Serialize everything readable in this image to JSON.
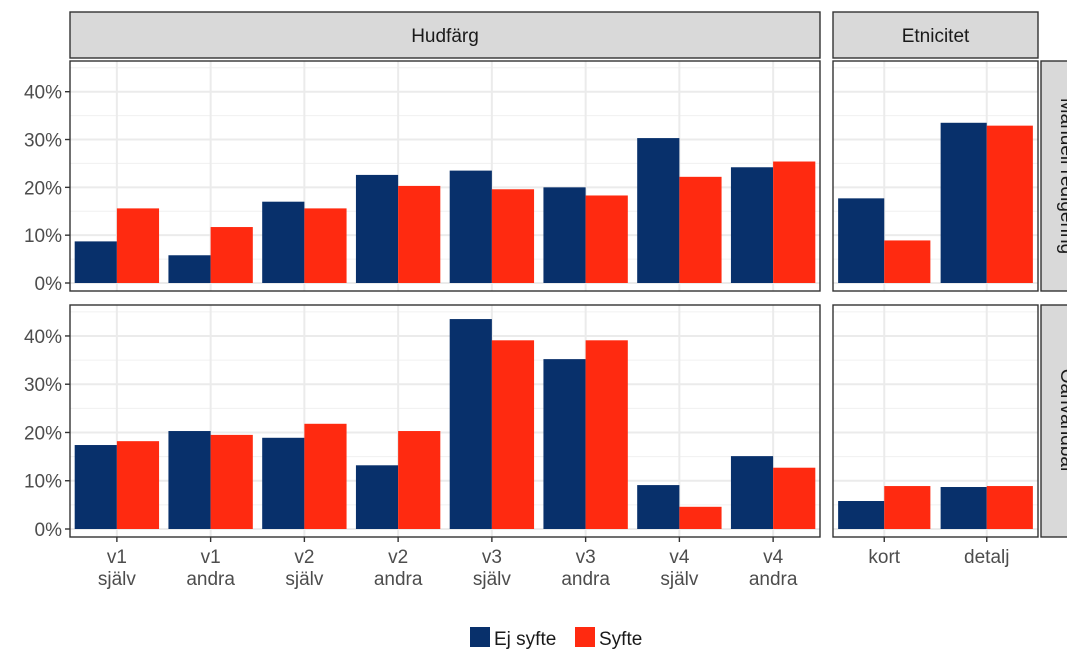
{
  "chart_data": {
    "type": "bar",
    "facet_columns": [
      "Hudfärg",
      "Etnicitet"
    ],
    "facet_rows": [
      "Manuell redigering",
      "Oanvändbar"
    ],
    "categories": {
      "Hudfärg": [
        [
          "v1",
          "själv"
        ],
        [
          "v1",
          "andra"
        ],
        [
          "v2",
          "själv"
        ],
        [
          "v2",
          "andra"
        ],
        [
          "v3",
          "själv"
        ],
        [
          "v3",
          "andra"
        ],
        [
          "v4",
          "själv"
        ],
        [
          "v4",
          "andra"
        ]
      ],
      "Etnicitet": [
        [
          "kort"
        ],
        [
          "detalj"
        ]
      ]
    },
    "series": [
      {
        "name": "Ej syfte",
        "color": "#08306b"
      },
      {
        "name": "Syfte",
        "color": "#ff2a10"
      }
    ],
    "panels": [
      {
        "row": "Manuell redigering",
        "col": "Hudfärg",
        "values": {
          "Ej syfte": [
            8.7,
            5.8,
            17.0,
            22.6,
            23.5,
            20.0,
            30.3,
            24.2
          ],
          "Syfte": [
            15.6,
            11.7,
            15.6,
            20.3,
            19.6,
            18.3,
            22.2,
            25.4
          ]
        }
      },
      {
        "row": "Manuell redigering",
        "col": "Etnicitet",
        "values": {
          "Ej syfte": [
            17.7,
            33.5
          ],
          "Syfte": [
            8.9,
            32.9
          ]
        }
      },
      {
        "row": "Oanvändbar",
        "col": "Hudfärg",
        "values": {
          "Ej syfte": [
            17.4,
            20.3,
            18.9,
            13.2,
            43.5,
            35.2,
            9.1,
            15.1
          ],
          "Syfte": [
            18.2,
            19.5,
            21.8,
            20.3,
            39.1,
            39.1,
            4.6,
            12.7
          ]
        }
      },
      {
        "row": "Oanvändbar",
        "col": "Etnicitet",
        "values": {
          "Ej syfte": [
            5.8,
            8.7
          ],
          "Syfte": [
            8.9,
            8.9
          ]
        }
      }
    ],
    "yticks": [
      "0%",
      "10%",
      "20%",
      "30%",
      "40%"
    ],
    "ylim": [
      0,
      46
    ],
    "grid": true,
    "legend_position": "bottom"
  }
}
